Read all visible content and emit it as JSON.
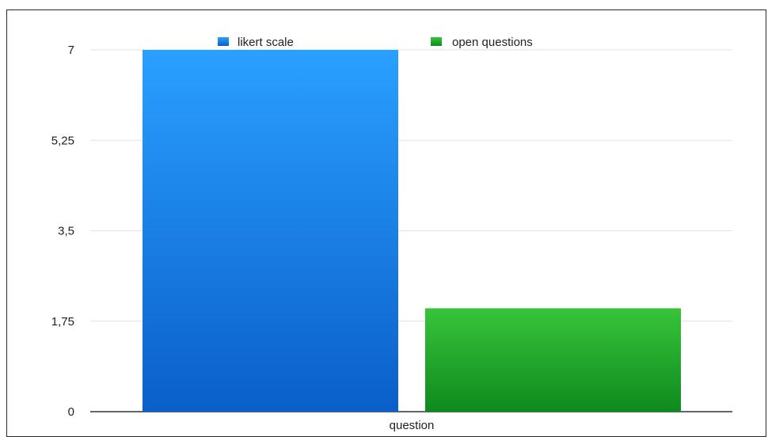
{
  "chart_data": {
    "type": "bar",
    "categories": [
      "question"
    ],
    "series": [
      {
        "name": "likert scale",
        "values": [
          7
        ],
        "color_top": "#2aa0ff",
        "color_bottom": "#0a5fc8"
      },
      {
        "name": "open questions",
        "values": [
          2
        ],
        "color_top": "#37c43a",
        "color_bottom": "#0f8a1e"
      }
    ],
    "yticks": [
      "0",
      "1,75",
      "3,5",
      "5,25",
      "7"
    ],
    "ytick_values": [
      0,
      1.75,
      3.5,
      5.25,
      7
    ],
    "ylim": [
      0,
      7
    ],
    "grid": true,
    "legend_position": "top"
  }
}
